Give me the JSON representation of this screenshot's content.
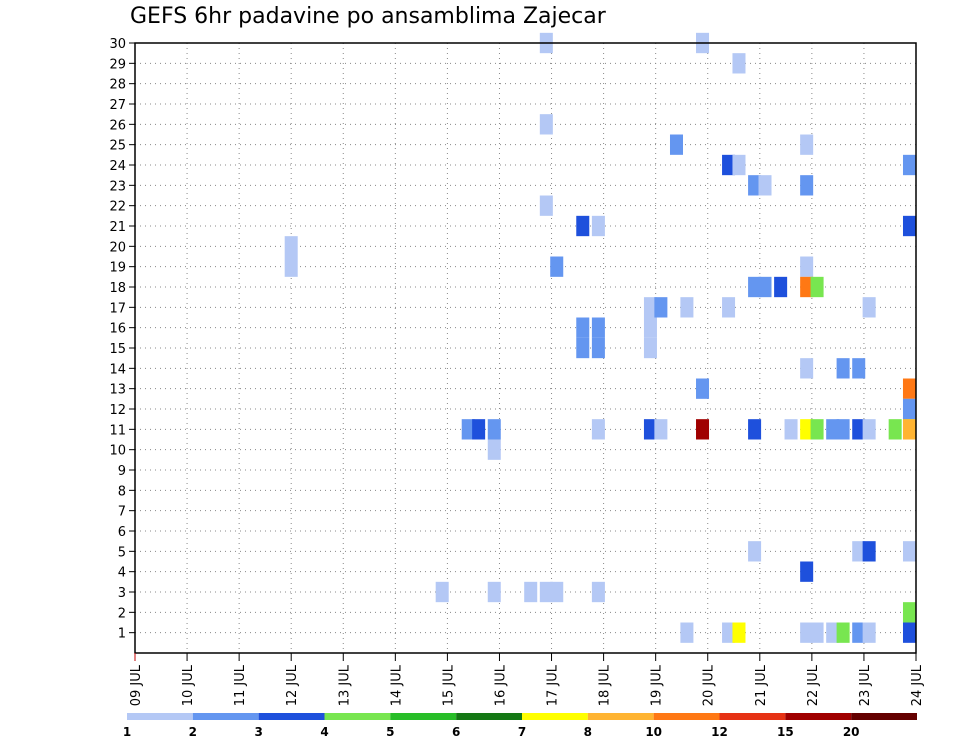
{
  "chart_data": {
    "type": "heatmap",
    "title": "GEFS 6hr padavine po ansamblima Zajecar",
    "xlabel": "",
    "ylabel": "",
    "x_tick_labels": [
      "09 JUL",
      "10 JUL",
      "11 JUL",
      "12 JUL",
      "13 JUL",
      "14 JUL",
      "15 JUL",
      "16 JUL",
      "17 JUL",
      "18 JUL",
      "19 JUL",
      "20 JUL",
      "21 JUL",
      "22 JUL",
      "23 JUL",
      "24 JUL"
    ],
    "x_range_days": [
      9,
      24
    ],
    "y_range": [
      0,
      30
    ],
    "y_ticks": [
      1,
      2,
      3,
      4,
      5,
      6,
      7,
      8,
      9,
      10,
      11,
      12,
      13,
      14,
      15,
      16,
      17,
      18,
      19,
      20,
      21,
      22,
      23,
      24,
      25,
      26,
      27,
      28,
      29,
      30
    ],
    "grid": true,
    "colorbar": {
      "labels": [
        "1",
        "2",
        "3",
        "4",
        "5",
        "6",
        "7",
        "8",
        "10",
        "12",
        "15",
        "20"
      ],
      "colors": [
        "#b4c8f5",
        "#6496f0",
        "#1e50dc",
        "#78e650",
        "#28be28",
        "#147814",
        "#ffff00",
        "#ffb432",
        "#ff7814",
        "#e63214",
        "#a00000",
        "#640000"
      ]
    },
    "cells": [
      {
        "day": 16.9,
        "member": 30,
        "cls": 1
      },
      {
        "day": 19.9,
        "member": 30,
        "cls": 1
      },
      {
        "day": 20.6,
        "member": 29,
        "cls": 1
      },
      {
        "day": 16.9,
        "member": 26,
        "cls": 1
      },
      {
        "day": 19.4,
        "member": 25,
        "cls": 2
      },
      {
        "day": 21.9,
        "member": 25,
        "cls": 1
      },
      {
        "day": 20.4,
        "member": 24,
        "cls": 3
      },
      {
        "day": 20.6,
        "member": 24,
        "cls": 1
      },
      {
        "day": 24.0,
        "member": 24,
        "cls": 2
      },
      {
        "day": 20.9,
        "member": 23,
        "cls": 2
      },
      {
        "day": 21.1,
        "member": 23,
        "cls": 1
      },
      {
        "day": 21.9,
        "member": 23,
        "cls": 2
      },
      {
        "day": 16.9,
        "member": 22,
        "cls": 1
      },
      {
        "day": 17.6,
        "member": 21,
        "cls": 3
      },
      {
        "day": 17.9,
        "member": 21,
        "cls": 1
      },
      {
        "day": 24.0,
        "member": 21,
        "cls": 3
      },
      {
        "day": 12.0,
        "member": 20,
        "cls": 1
      },
      {
        "day": 12.0,
        "member": 19,
        "cls": 1
      },
      {
        "day": 17.1,
        "member": 19,
        "cls": 2
      },
      {
        "day": 21.9,
        "member": 19,
        "cls": 1
      },
      {
        "day": 20.9,
        "member": 18,
        "cls": 2
      },
      {
        "day": 21.1,
        "member": 18,
        "cls": 2
      },
      {
        "day": 21.4,
        "member": 18,
        "cls": 3
      },
      {
        "day": 21.9,
        "member": 18,
        "cls": 9
      },
      {
        "day": 22.1,
        "member": 18,
        "cls": 4
      },
      {
        "day": 18.9,
        "member": 17,
        "cls": 1
      },
      {
        "day": 19.1,
        "member": 17,
        "cls": 2
      },
      {
        "day": 19.6,
        "member": 17,
        "cls": 1
      },
      {
        "day": 20.4,
        "member": 17,
        "cls": 1
      },
      {
        "day": 23.1,
        "member": 17,
        "cls": 1
      },
      {
        "day": 17.6,
        "member": 16,
        "cls": 2
      },
      {
        "day": 17.9,
        "member": 16,
        "cls": 2
      },
      {
        "day": 18.9,
        "member": 16,
        "cls": 1
      },
      {
        "day": 17.6,
        "member": 15,
        "cls": 2
      },
      {
        "day": 17.9,
        "member": 15,
        "cls": 2
      },
      {
        "day": 18.9,
        "member": 15,
        "cls": 1
      },
      {
        "day": 21.9,
        "member": 14,
        "cls": 1
      },
      {
        "day": 22.6,
        "member": 14,
        "cls": 2
      },
      {
        "day": 22.9,
        "member": 14,
        "cls": 2
      },
      {
        "day": 19.9,
        "member": 13,
        "cls": 2
      },
      {
        "day": 23.9,
        "member": 13,
        "cls": 8
      },
      {
        "day": 24.0,
        "member": 13,
        "cls": 9
      },
      {
        "day": 23.9,
        "member": 12,
        "cls": 1
      },
      {
        "day": 24.0,
        "member": 12,
        "cls": 2
      },
      {
        "day": 15.4,
        "member": 11,
        "cls": 2
      },
      {
        "day": 15.6,
        "member": 11,
        "cls": 3
      },
      {
        "day": 15.9,
        "member": 11,
        "cls": 2
      },
      {
        "day": 17.9,
        "member": 11,
        "cls": 1
      },
      {
        "day": 18.9,
        "member": 11,
        "cls": 3
      },
      {
        "day": 19.1,
        "member": 11,
        "cls": 1
      },
      {
        "day": 19.9,
        "member": 11,
        "cls": 11
      },
      {
        "day": 20.9,
        "member": 11,
        "cls": 3
      },
      {
        "day": 21.6,
        "member": 11,
        "cls": 1
      },
      {
        "day": 21.9,
        "member": 11,
        "cls": 7
      },
      {
        "day": 22.1,
        "member": 11,
        "cls": 4
      },
      {
        "day": 22.4,
        "member": 11,
        "cls": 2
      },
      {
        "day": 22.6,
        "member": 11,
        "cls": 2
      },
      {
        "day": 22.9,
        "member": 11,
        "cls": 3
      },
      {
        "day": 23.1,
        "member": 11,
        "cls": 1
      },
      {
        "day": 23.6,
        "member": 11,
        "cls": 4
      },
      {
        "day": 23.9,
        "member": 11,
        "cls": 4
      },
      {
        "day": 24.0,
        "member": 11,
        "cls": 8
      },
      {
        "day": 15.9,
        "member": 10,
        "cls": 1
      },
      {
        "day": 20.9,
        "member": 5,
        "cls": 1
      },
      {
        "day": 22.9,
        "member": 5,
        "cls": 1
      },
      {
        "day": 23.1,
        "member": 5,
        "cls": 3
      },
      {
        "day": 24.0,
        "member": 5,
        "cls": 1
      },
      {
        "day": 21.9,
        "member": 4,
        "cls": 3
      },
      {
        "day": 14.9,
        "member": 3,
        "cls": 1
      },
      {
        "day": 15.9,
        "member": 3,
        "cls": 1
      },
      {
        "day": 16.6,
        "member": 3,
        "cls": 1
      },
      {
        "day": 16.9,
        "member": 3,
        "cls": 1
      },
      {
        "day": 17.1,
        "member": 3,
        "cls": 1
      },
      {
        "day": 17.9,
        "member": 3,
        "cls": 1
      },
      {
        "day": 24.0,
        "member": 2,
        "cls": 4
      },
      {
        "day": 19.6,
        "member": 1,
        "cls": 1
      },
      {
        "day": 20.4,
        "member": 1,
        "cls": 1
      },
      {
        "day": 20.6,
        "member": 1,
        "cls": 7
      },
      {
        "day": 21.9,
        "member": 1,
        "cls": 1
      },
      {
        "day": 22.1,
        "member": 1,
        "cls": 1
      },
      {
        "day": 22.4,
        "member": 1,
        "cls": 1
      },
      {
        "day": 22.6,
        "member": 1,
        "cls": 4
      },
      {
        "day": 22.9,
        "member": 1,
        "cls": 2
      },
      {
        "day": 23.1,
        "member": 1,
        "cls": 1
      },
      {
        "day": 24.0,
        "member": 1,
        "cls": 3
      }
    ]
  }
}
